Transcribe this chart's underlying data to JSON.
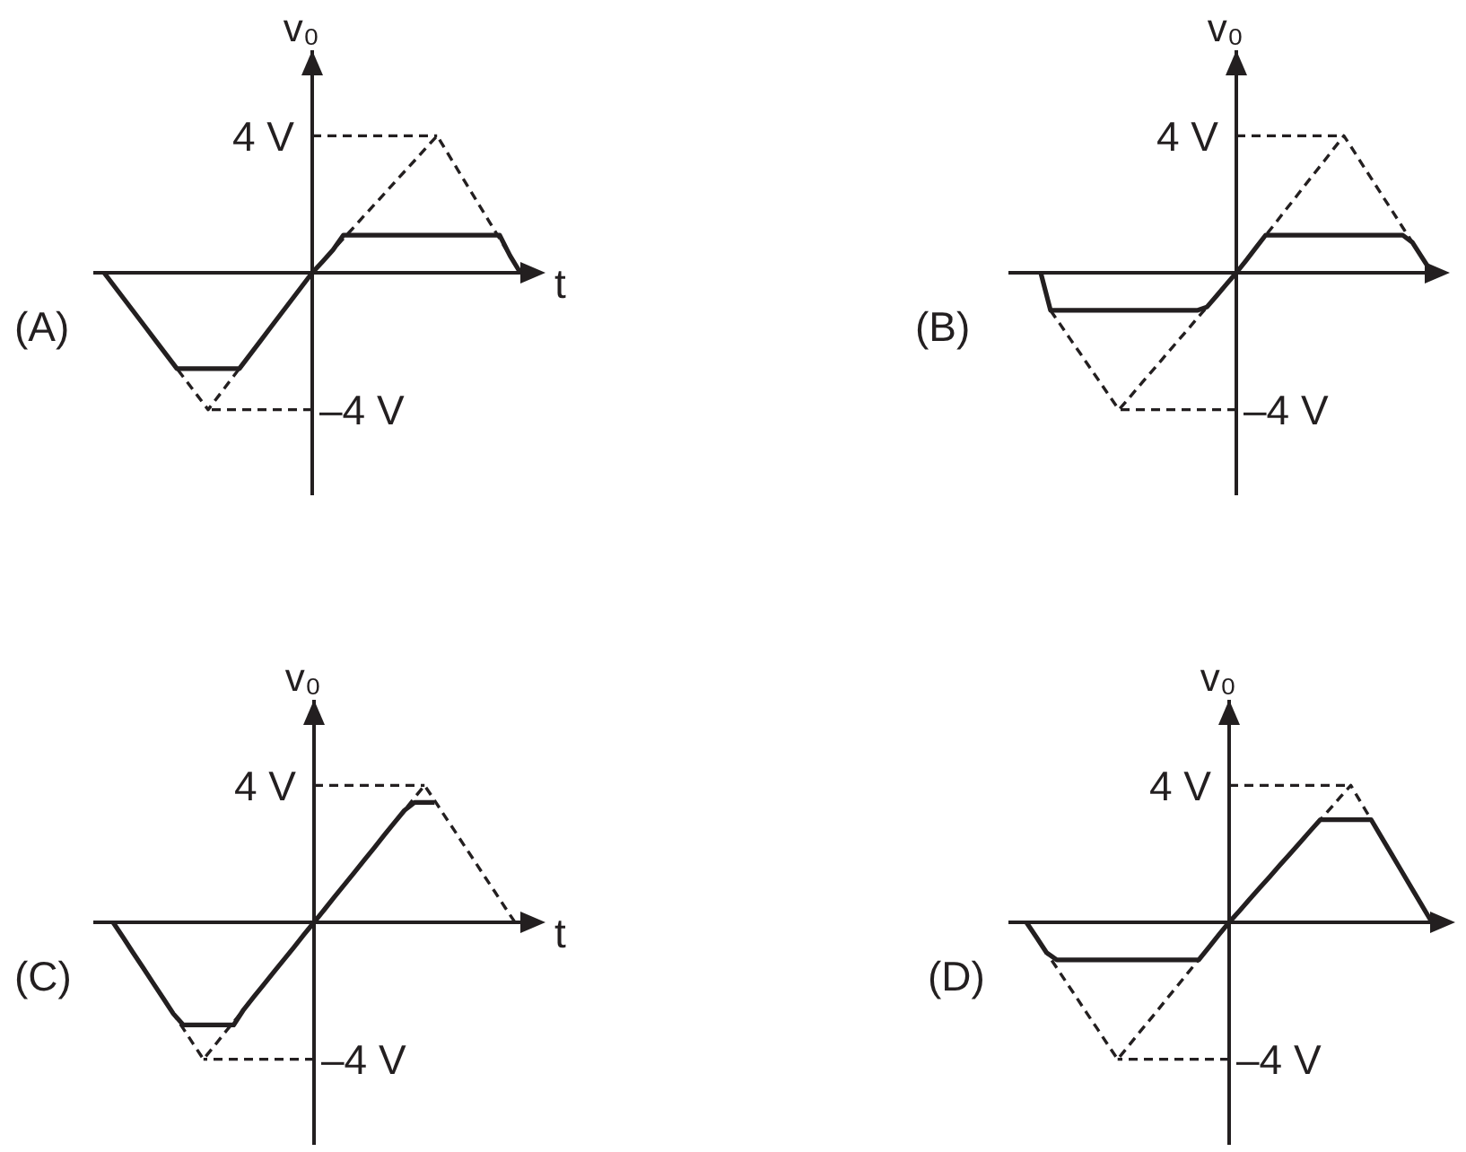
{
  "chart_data": [
    {
      "type": "line",
      "title": "(A)",
      "xlabel": "t",
      "ylabel": "v₀",
      "categories": [
        null,
        null,
        null,
        null,
        null,
        null,
        null,
        null,
        null,
        null,
        null,
        null,
        null,
        null,
        null,
        null,
        null,
        null,
        null,
        null,
        null,
        null,
        null,
        null,
        null,
        null,
        null,
        null,
        null,
        null,
        null,
        null,
        null,
        null,
        null,
        null,
        null,
        null,
        null,
        null,
        null
      ],
      "ylim": [
        -6.5,
        6.5
      ],
      "ref_lines": [
        {
          "axis": "y",
          "value": 4,
          "label": "4 V",
          "color": "#231f20",
          "line_style": "dashed"
        },
        {
          "axis": "y",
          "value": -4,
          "label": "–4 V",
          "color": "#231f20",
          "line_style": "dashed"
        }
      ],
      "series": [
        {
          "color": "#231f20",
          "line_style": "dashed",
          "values": [
            0,
            -0.4,
            -0.8,
            -1.2,
            -1.6,
            -2,
            -2.4,
            -2.8,
            -3.2,
            -3.6,
            -4,
            -3.6,
            -3.2,
            -2.8,
            -2.4,
            -2,
            -1.6,
            -1.2,
            -0.8,
            -0.4,
            0,
            0.33,
            0.67,
            1,
            1.33,
            1.67,
            2,
            2.33,
            2.67,
            3,
            3.33,
            3.67,
            4,
            3.5,
            3,
            2.5,
            2,
            1.5,
            1,
            0.5,
            0
          ]
        },
        {
          "color": "#231f20",
          "line_style": "solid",
          "values": [
            0,
            -0.4,
            -0.8,
            -1.2,
            -1.6,
            -2,
            -2.4,
            -2.8,
            -2.8,
            -2.8,
            -2.8,
            -2.8,
            -2.8,
            -2.8,
            -2.4,
            -2,
            -1.6,
            -1.2,
            -0.8,
            -0.4,
            0,
            0.33,
            0.67,
            1.1,
            1.1,
            1.1,
            1.1,
            1.1,
            1.1,
            1.1,
            1.1,
            1.1,
            1.1,
            1.1,
            1.1,
            1.1,
            1.1,
            1.1,
            1.1,
            0.5,
            0
          ]
        }
      ]
    },
    {
      "type": "line",
      "title": "(B)",
      "ylabel": "v₀",
      "categories": [
        null,
        null,
        null,
        null,
        null,
        null,
        null,
        null,
        null,
        null,
        null,
        null,
        null,
        null,
        null,
        null,
        null,
        null,
        null,
        null,
        null,
        null,
        null,
        null,
        null,
        null,
        null,
        null,
        null,
        null,
        null,
        null,
        null,
        null,
        null,
        null,
        null,
        null,
        null,
        null,
        null
      ],
      "ylim": [
        -6.5,
        6.5
      ],
      "ref_lines": [
        {
          "axis": "y",
          "value": 4,
          "label": "4 V",
          "color": "#231f20",
          "line_style": "dashed"
        },
        {
          "axis": "y",
          "value": -4,
          "label": "–4 V",
          "color": "#231f20",
          "line_style": "dashed"
        }
      ],
      "series": [
        {
          "color": "#231f20",
          "line_style": "dashed",
          "values": [
            null,
            -1.1,
            -1.51,
            -1.93,
            -2.34,
            -2.76,
            -3.17,
            -3.59,
            -4,
            -3.67,
            -3.33,
            -3,
            -2.67,
            -2.33,
            -2,
            -1.67,
            -1.33,
            -1,
            -0.67,
            -0.33,
            0,
            0.36,
            0.73,
            1.09,
            1.45,
            1.82,
            2.18,
            2.55,
            2.91,
            3.27,
            3.64,
            4,
            3.56,
            3.11,
            2.67,
            2.22,
            1.78,
            1.33,
            0.89,
            0.44,
            0
          ]
        },
        {
          "color": "#231f20",
          "line_style": "solid",
          "values": [
            0,
            -1.1,
            -1.1,
            -1.1,
            -1.1,
            -1.1,
            -1.1,
            -1.1,
            -1.1,
            -1.1,
            -1.1,
            -1.1,
            -1.1,
            -1.1,
            -1.1,
            -1.1,
            -1.1,
            -1,
            -0.67,
            -0.33,
            0,
            0.36,
            0.73,
            1.1,
            1.1,
            1.1,
            1.1,
            1.1,
            1.1,
            1.1,
            1.1,
            1.1,
            1.1,
            1.1,
            1.1,
            1.1,
            1.1,
            1.1,
            0.89,
            0.44,
            0
          ]
        }
      ]
    },
    {
      "type": "line",
      "title": "(C)",
      "xlabel": "t",
      "ylabel": "v₀",
      "categories": [
        null,
        null,
        null,
        null,
        null,
        null,
        null,
        null,
        null,
        null,
        null,
        null,
        null,
        null,
        null,
        null,
        null,
        null,
        null,
        null,
        null,
        null,
        null,
        null,
        null,
        null,
        null,
        null,
        null,
        null,
        null,
        null,
        null,
        null,
        null,
        null,
        null,
        null,
        null,
        null,
        null
      ],
      "ylim": [
        -6.5,
        6.5
      ],
      "ref_lines": [
        {
          "axis": "y",
          "value": 4,
          "label": "4 V",
          "color": "#231f20",
          "line_style": "dashed"
        },
        {
          "axis": "y",
          "value": -4,
          "label": "–4 V",
          "color": "#231f20",
          "line_style": "dashed"
        }
      ],
      "series": [
        {
          "color": "#231f20",
          "line_style": "dashed",
          "values": [
            0,
            -0.44,
            -0.89,
            -1.33,
            -1.78,
            -2.22,
            -2.67,
            -3.11,
            -3.56,
            -4,
            -3.64,
            -3.27,
            -2.91,
            -2.55,
            -2.18,
            -1.82,
            -1.45,
            -1.09,
            -0.73,
            -0.36,
            0,
            0.36,
            0.73,
            1.09,
            1.45,
            1.82,
            2.18,
            2.55,
            2.91,
            3.27,
            3.64,
            4,
            3.56,
            3.11,
            2.67,
            2.22,
            1.78,
            1.33,
            0.89,
            0.44,
            0
          ]
        },
        {
          "color": "#231f20",
          "line_style": "solid",
          "values": [
            0,
            -0.44,
            -0.89,
            -1.33,
            -1.78,
            -2.22,
            -2.67,
            -3,
            -3,
            -3,
            -3,
            -3,
            -3,
            -2.55,
            -2.18,
            -1.82,
            -1.45,
            -1.09,
            -0.73,
            -0.36,
            0,
            0.36,
            0.73,
            1.09,
            1.45,
            1.82,
            2.18,
            2.55,
            2.91,
            3.27,
            3.5,
            3.5,
            3.5,
            null,
            null,
            null,
            null,
            null,
            null,
            null,
            null
          ]
        }
      ]
    },
    {
      "type": "line",
      "title": "(D)",
      "ylabel": "v₀",
      "categories": [
        null,
        null,
        null,
        null,
        null,
        null,
        null,
        null,
        null,
        null,
        null,
        null,
        null,
        null,
        null,
        null,
        null,
        null,
        null,
        null,
        null,
        null,
        null,
        null,
        null,
        null,
        null,
        null,
        null,
        null,
        null,
        null,
        null,
        null,
        null,
        null,
        null,
        null,
        null,
        null,
        null
      ],
      "ylim": [
        -6.5,
        6.5
      ],
      "ref_lines": [
        {
          "axis": "y",
          "value": 4,
          "label": "4 V",
          "color": "#231f20",
          "line_style": "dashed"
        },
        {
          "axis": "y",
          "value": -4,
          "label": "–4 V",
          "color": "#231f20",
          "line_style": "dashed"
        }
      ],
      "series": [
        {
          "color": "#231f20",
          "line_style": "dashed",
          "values": [
            0,
            -0.44,
            -0.89,
            -1.33,
            -1.78,
            -2.22,
            -2.67,
            -3.11,
            -3.56,
            -4,
            -3.64,
            -3.27,
            -2.91,
            -2.55,
            -2.18,
            -1.82,
            -1.45,
            -1.09,
            -0.73,
            -0.36,
            0,
            0.33,
            0.67,
            1,
            1.33,
            1.67,
            2,
            2.33,
            2.67,
            3,
            3.33,
            3.67,
            4,
            3.5,
            3,
            2.5,
            2,
            1.5,
            1,
            0.5,
            0
          ]
        },
        {
          "color": "#231f20",
          "line_style": "solid",
          "values": [
            0,
            -0.44,
            -0.89,
            -1.1,
            -1.1,
            -1.1,
            -1.1,
            -1.1,
            -1.1,
            -1.1,
            -1.1,
            -1.1,
            -1.1,
            -1.1,
            -1.1,
            -1.1,
            -1.1,
            -1.1,
            -0.73,
            -0.36,
            0,
            0.33,
            0.67,
            1,
            1.33,
            1.67,
            2,
            2.33,
            2.67,
            3,
            3,
            3,
            3,
            3,
            3,
            2.5,
            2,
            1.5,
            1,
            0.5,
            0
          ]
        }
      ]
    }
  ]
}
